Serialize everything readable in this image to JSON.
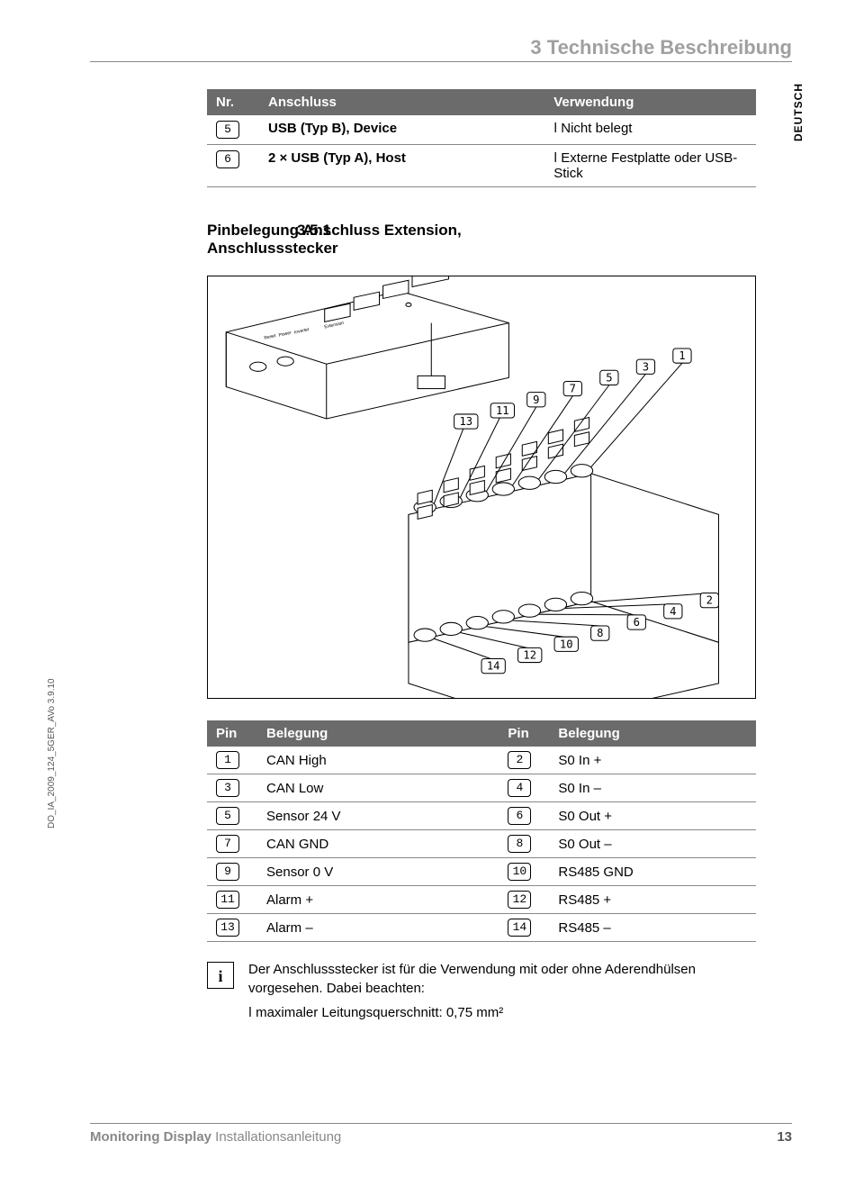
{
  "meta": {
    "chapter_title": "3 Technische Beschreibung",
    "language_tab": "DEUTSCH",
    "side_code": "DO_IA_2009_124_5GER_AVo  3.9.10",
    "footer_product": "Monitoring Display",
    "footer_subtitle": "Installationsanleitung",
    "page_number": "13"
  },
  "connector_table": {
    "header_nr": "Nr.",
    "header_anschluss": "Anschluss",
    "header_verwendung": "Verwendung",
    "rows": [
      {
        "nr": "5",
        "anschluss": "USB (Typ B), Device",
        "verwendung": "Nicht belegt"
      },
      {
        "nr": "6",
        "anschluss": "2 × USB (Typ A), Host",
        "verwendung": "Externe Festplatte oder USB-Stick"
      }
    ]
  },
  "section": {
    "number": "3.5.1",
    "title_l1": "Pinbelegung Anschluss Extension,",
    "title_l2": "Anschlussstecker"
  },
  "diagram": {
    "labels_top": [
      "13",
      "11",
      "9",
      "7",
      "5",
      "3",
      "1"
    ],
    "labels_bottom": [
      "14",
      "12",
      "10",
      "8",
      "6",
      "4",
      "2"
    ],
    "port_labels": [
      "Reset",
      "Power",
      "Inverter",
      "Extension"
    ]
  },
  "pin_table": {
    "header_pin": "Pin",
    "header_belegung": "Belegung",
    "rows": [
      {
        "a_num": "1",
        "a_label": "CAN High",
        "b_num": "2",
        "b_label": "S0 In +"
      },
      {
        "a_num": "3",
        "a_label": "CAN Low",
        "b_num": "4",
        "b_label": "S0 In –"
      },
      {
        "a_num": "5",
        "a_label": "Sensor 24 V",
        "b_num": "6",
        "b_label": "S0 Out +"
      },
      {
        "a_num": "7",
        "a_label": "CAN GND",
        "b_num": "8",
        "b_label": "S0 Out –"
      },
      {
        "a_num": "9",
        "a_label": "Sensor 0 V",
        "b_num": "10",
        "b_label": "RS485 GND"
      },
      {
        "a_num": "11",
        "a_label": "Alarm +",
        "b_num": "12",
        "b_label": "RS485 +"
      },
      {
        "a_num": "13",
        "a_label": "Alarm –",
        "b_num": "14",
        "b_label": "RS485 –"
      }
    ]
  },
  "note": {
    "icon_glyph": "i",
    "text1": "Der Anschlussstecker ist für die Verwendung mit oder ohne Aderendhülsen vorgesehen. Dabei beachten:",
    "bullet1": "maximaler Leitungsquerschnitt: 0,75 mm²"
  },
  "style": {
    "header_bg": "#6b6b6b",
    "header_fg": "#ffffff",
    "divider_color": "#888888",
    "faded_text": "#a0a0a0"
  }
}
